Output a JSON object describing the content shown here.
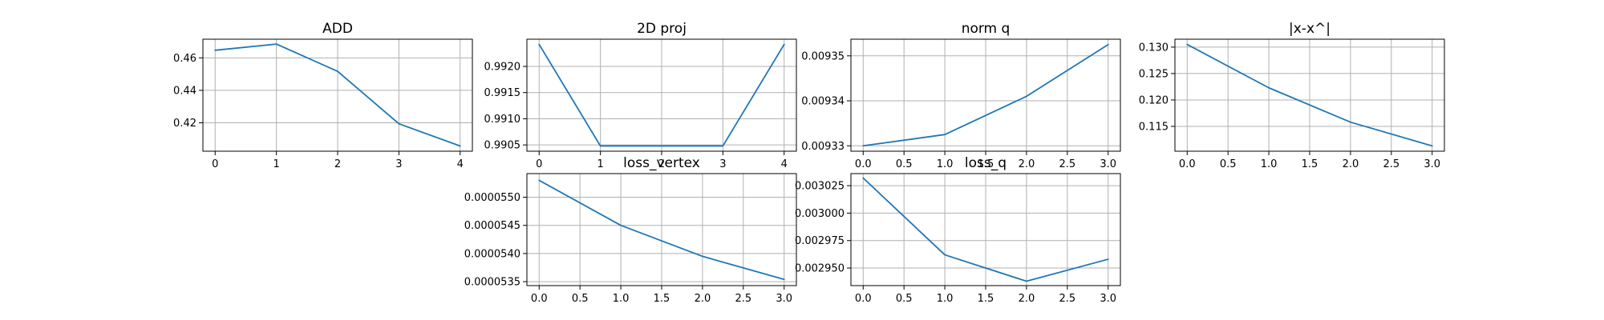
{
  "line_color": "#1f77b4",
  "grid": true,
  "chart_data": [
    {
      "type": "line",
      "title": "ADD",
      "x": [
        0,
        1,
        2,
        3,
        4
      ],
      "y": [
        0.4647,
        0.4685,
        0.4517,
        0.4194,
        0.4057
      ],
      "xlim": [
        -0.2,
        4.2
      ],
      "ylim": [
        0.4025,
        0.4715
      ],
      "xticks": [
        0,
        1,
        2,
        3,
        4
      ],
      "xtick_labels": [
        "0",
        "1",
        "2",
        "3",
        "4"
      ],
      "yticks": [
        0.42,
        0.44,
        0.46
      ],
      "ytick_labels": [
        "0.42",
        "0.44",
        "0.46"
      ]
    },
    {
      "type": "line",
      "title": "2D proj",
      "x": [
        0,
        1,
        2,
        3,
        4
      ],
      "y": [
        0.99242,
        0.99048,
        0.99048,
        0.99048,
        0.99242
      ],
      "xlim": [
        -0.2,
        4.2
      ],
      "ylim": [
        0.99038,
        0.99252
      ],
      "xticks": [
        0,
        1,
        2,
        3,
        4
      ],
      "xtick_labels": [
        "0",
        "1",
        "2",
        "3",
        "4"
      ],
      "yticks": [
        0.9905,
        0.991,
        0.9915,
        0.992
      ],
      "ytick_labels": [
        "0.9905",
        "0.9910",
        "0.9915",
        "0.9920"
      ]
    },
    {
      "type": "line",
      "title": "norm q",
      "x": [
        0,
        1,
        2,
        3
      ],
      "y": [
        0.00933,
        0.0093325,
        0.009341,
        0.0093525
      ],
      "xlim": [
        -0.15,
        3.15
      ],
      "ylim": [
        0.0093288,
        0.0093537
      ],
      "xticks": [
        0,
        0.5,
        1,
        1.5,
        2,
        2.5,
        3
      ],
      "xtick_labels": [
        "0.0",
        "0.5",
        "1.0",
        "1.5",
        "2.0",
        "2.5",
        "3.0"
      ],
      "yticks": [
        0.00933,
        0.00934,
        0.00935
      ],
      "ytick_labels": [
        "0.00933",
        "0.00934",
        "0.00935"
      ]
    },
    {
      "type": "line",
      "title": "|x-x^|",
      "x": [
        0,
        1,
        2,
        3
      ],
      "y": [
        0.1305,
        0.1223,
        0.1158,
        0.1113
      ],
      "xlim": [
        -0.15,
        3.15
      ],
      "ylim": [
        0.1103,
        0.1315
      ],
      "xticks": [
        0,
        0.5,
        1,
        1.5,
        2,
        2.5,
        3
      ],
      "xtick_labels": [
        "0.0",
        "0.5",
        "1.0",
        "1.5",
        "2.0",
        "2.5",
        "3.0"
      ],
      "yticks": [
        0.115,
        0.12,
        0.125,
        0.13
      ],
      "ytick_labels": [
        "0.115",
        "0.120",
        "0.125",
        "0.130"
      ]
    },
    {
      "type": "line",
      "title": "loss_vertex",
      "x": [
        0,
        1,
        2,
        3
      ],
      "y": [
        5.53e-05,
        5.45e-05,
        5.395e-05,
        5.354e-05
      ],
      "xlim": [
        -0.15,
        3.15
      ],
      "ylim": [
        5.343e-05,
        5.542e-05
      ],
      "xticks": [
        0,
        0.5,
        1,
        1.5,
        2,
        2.5,
        3
      ],
      "xtick_labels": [
        "0.0",
        "0.5",
        "1.0",
        "1.5",
        "2.0",
        "2.5",
        "3.0"
      ],
      "yticks": [
        5.35e-05,
        5.4e-05,
        5.45e-05,
        5.5e-05
      ],
      "ytick_labels": [
        "0.0000535",
        "0.0000540",
        "0.0000545",
        "0.0000550"
      ]
    },
    {
      "type": "line",
      "title": "loss_q",
      "x": [
        0,
        1,
        2,
        3
      ],
      "y": [
        0.003032,
        0.002962,
        0.002938,
        0.002958
      ],
      "xlim": [
        -0.15,
        3.15
      ],
      "ylim": [
        0.002934,
        0.003036
      ],
      "xticks": [
        0,
        0.5,
        1,
        1.5,
        2,
        2.5,
        3
      ],
      "xtick_labels": [
        "0.0",
        "0.5",
        "1.0",
        "1.5",
        "2.0",
        "2.5",
        "3.0"
      ],
      "yticks": [
        0.00295,
        0.002975,
        0.003,
        0.003025
      ],
      "ytick_labels": [
        "0.002950",
        "0.002975",
        "0.003000",
        "0.003025"
      ]
    }
  ]
}
